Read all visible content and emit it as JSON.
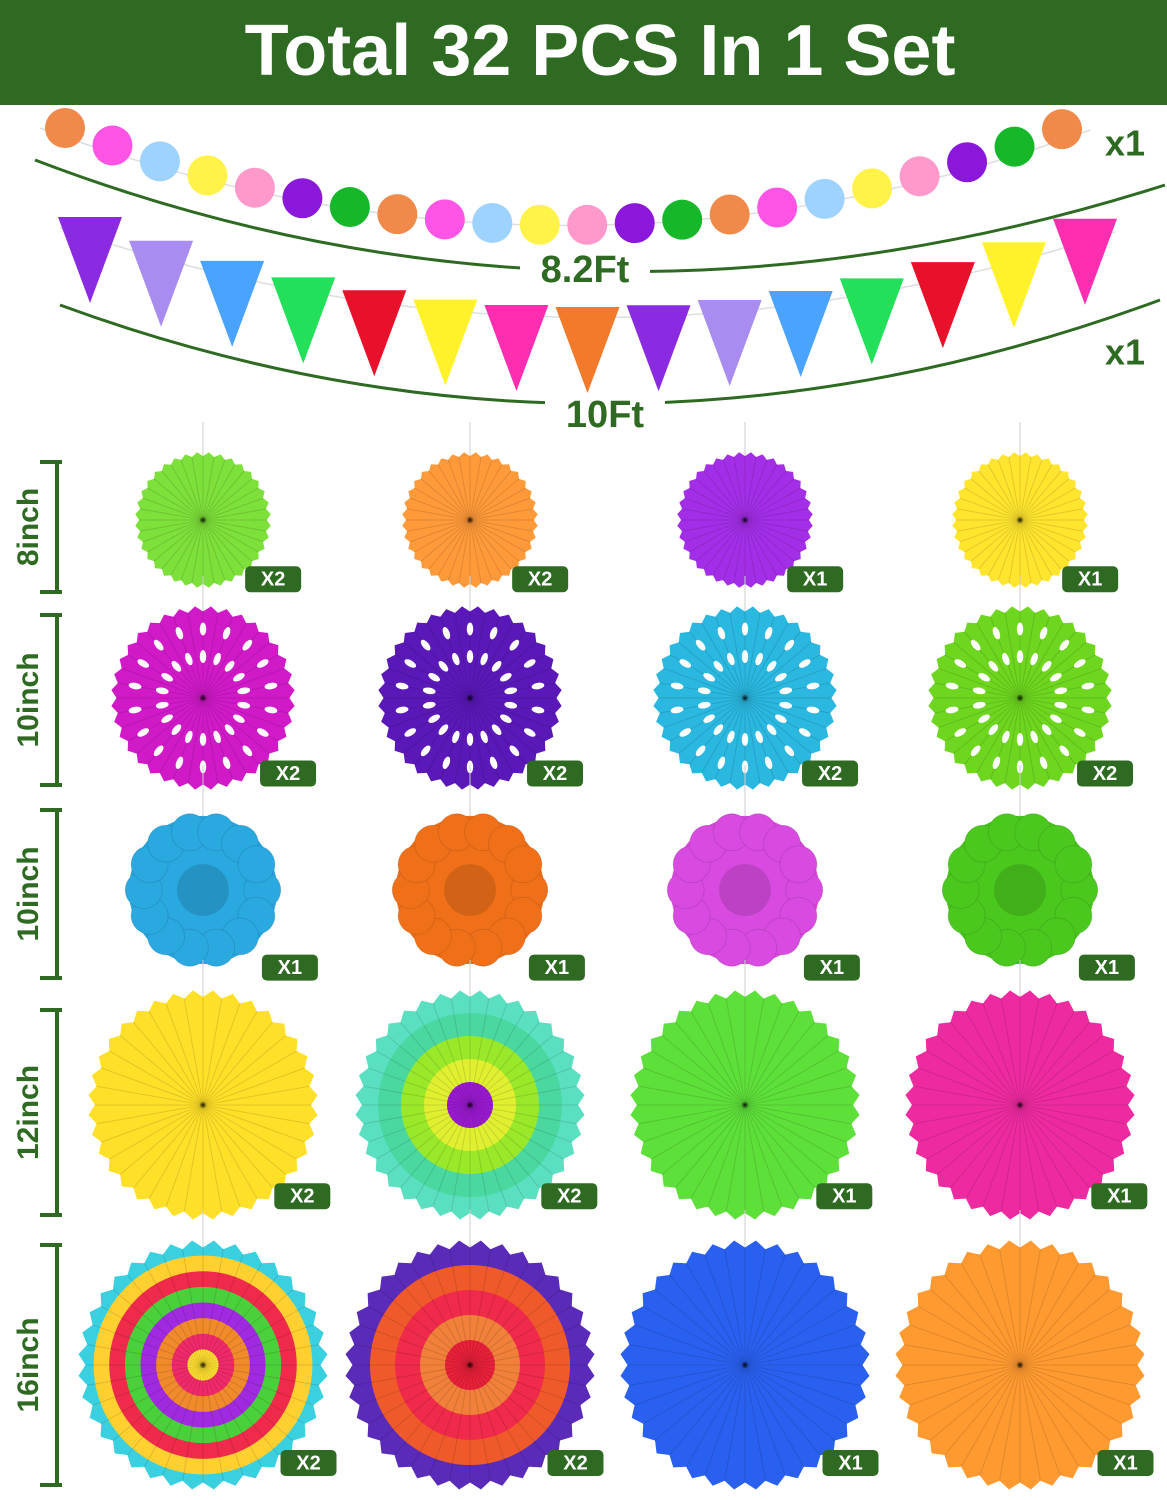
{
  "header": {
    "title": "Total 32 PCS In 1 Set"
  },
  "garlands": [
    {
      "quantity": "x1",
      "length": "8.2Ft",
      "colors": [
        "#f0894a",
        "#ff55e6",
        "#9fd3ff",
        "#fff34a",
        "#ff99cc",
        "#8a17d9",
        "#16b82a",
        "#f0894a",
        "#ff55e6",
        "#9fd3ff",
        "#fff34a",
        "#ff99cc",
        "#8a17d9",
        "#16b82a",
        "#f0894a",
        "#ff55e6",
        "#9fd3ff",
        "#fff34a",
        "#ff99cc",
        "#8a17d9",
        "#16b82a",
        "#f0894a"
      ]
    },
    {
      "quantity": "x1",
      "length": "10Ft",
      "colors": [
        "#8a2be2",
        "#a88cf0",
        "#4aa3ff",
        "#22e05a",
        "#e8102a",
        "#fff22a",
        "#ff2db0",
        "#f27a2a",
        "#8a2be2",
        "#a88cf0",
        "#4aa3ff",
        "#22e05a",
        "#e8102a",
        "#fff22a",
        "#ff2db0"
      ]
    }
  ],
  "rows": [
    {
      "size": "8inch",
      "items": [
        {
          "quantity": "X2",
          "colors": [
            "#7ee03a"
          ]
        },
        {
          "quantity": "X2",
          "colors": [
            "#ff9a3a"
          ]
        },
        {
          "quantity": "X1",
          "colors": [
            "#a32ee8"
          ]
        },
        {
          "quantity": "X1",
          "colors": [
            "#ffe52e"
          ]
        }
      ]
    },
    {
      "size": "10inch",
      "items": [
        {
          "quantity": "X2",
          "colors": [
            "#d01ac8"
          ]
        },
        {
          "quantity": "X2",
          "colors": [
            "#5a18b8"
          ]
        },
        {
          "quantity": "X2",
          "colors": [
            "#2ab8e0"
          ]
        },
        {
          "quantity": "X2",
          "colors": [
            "#6ed61e"
          ]
        }
      ]
    },
    {
      "size": "10inch",
      "items": [
        {
          "quantity": "X1",
          "colors": [
            "#2aa8e0"
          ]
        },
        {
          "quantity": "X1",
          "colors": [
            "#f0701a"
          ]
        },
        {
          "quantity": "X1",
          "colors": [
            "#d84ae0"
          ]
        },
        {
          "quantity": "X1",
          "colors": [
            "#4ac81e"
          ]
        }
      ]
    },
    {
      "size": "12inch",
      "items": [
        {
          "quantity": "X2",
          "colors": [
            "#ffe028"
          ]
        },
        {
          "quantity": "X2",
          "colors": [
            "#5ae0c0",
            "#4ad8a0",
            "#9ae82a",
            "#e0f030",
            "#9a1ad0"
          ]
        },
        {
          "quantity": "X1",
          "colors": [
            "#5ee03a"
          ]
        },
        {
          "quantity": "X1",
          "colors": [
            "#ee2aa0"
          ]
        }
      ]
    },
    {
      "size": "16inch",
      "items": [
        {
          "quantity": "X2",
          "colors": [
            "#3ad0e0",
            "#ffd030",
            "#f02a4a",
            "#4ad03a",
            "#a02ae0",
            "#f08a2a",
            "#f02a6a",
            "#ffe030"
          ]
        },
        {
          "quantity": "X2",
          "colors": [
            "#5a2ab8",
            "#f05a2a",
            "#f02a4a",
            "#f0803a",
            "#e8203a"
          ]
        },
        {
          "quantity": "X1",
          "colors": [
            "#2a60f0"
          ]
        },
        {
          "quantity": "X1",
          "colors": [
            "#ff9a30"
          ]
        }
      ]
    }
  ]
}
